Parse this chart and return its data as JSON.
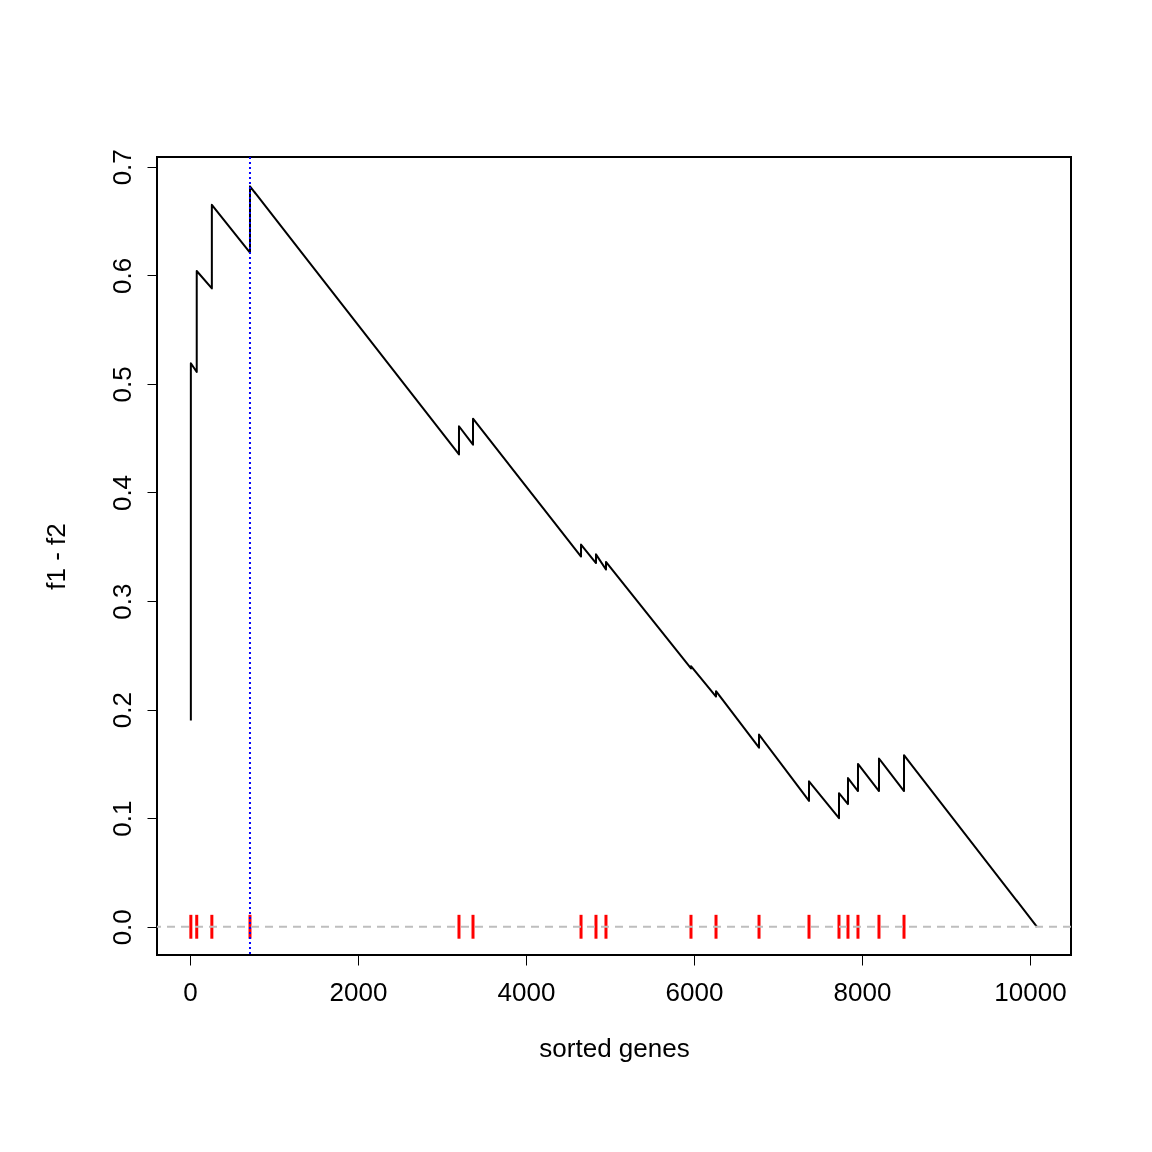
{
  "chart_data": {
    "type": "line",
    "xlabel": "sorted genes",
    "ylabel": "f1 - f2",
    "xlim": [
      -393,
      10488
    ],
    "xticks": [
      0,
      2000,
      4000,
      6000,
      8000,
      10000
    ],
    "ylim": [
      -0.026,
      0.709
    ],
    "yticks": [
      {
        "value": 0,
        "label": "0.0"
      },
      {
        "value": 0.1,
        "label": "0.1"
      },
      {
        "value": 0.2,
        "label": "0.2"
      },
      {
        "value": 0.3,
        "label": "0.3"
      },
      {
        "value": 0.4,
        "label": "0.4"
      },
      {
        "value": 0.5,
        "label": "0.5"
      },
      {
        "value": 0.6,
        "label": "0.6"
      },
      {
        "value": 0.7,
        "label": "0.7"
      }
    ],
    "grid": false,
    "marker": "none",
    "series": [
      {
        "color": "#000000",
        "line_style": "solid",
        "x": [
          10,
          10,
          80,
          80,
          260,
          260,
          714,
          714,
          3202,
          3202,
          3369,
          3369,
          4655,
          4655,
          4833,
          4833,
          4952,
          4952,
          5964,
          5964,
          6262,
          6262,
          6774,
          6774,
          7369,
          7369,
          7726,
          7726,
          7833,
          7833,
          7952,
          7952,
          8202,
          8202,
          8500,
          8500,
          10083
        ],
        "values": [
          0.19,
          0.519,
          0.511,
          0.604,
          0.588,
          0.665,
          0.621,
          0.682,
          0.435,
          0.461,
          0.444,
          0.468,
          0.341,
          0.352,
          0.335,
          0.343,
          0.329,
          0.336,
          0.238,
          0.24,
          0.212,
          0.217,
          0.165,
          0.177,
          0.116,
          0.134,
          0.1,
          0.123,
          0.113,
          0.137,
          0.125,
          0.15,
          0.125,
          0.155,
          0.125,
          0.158,
          0
        ]
      },
      {
        "type": "bar",
        "color": "#ff0000",
        "x": [
          10,
          80,
          260,
          714,
          3202,
          3369,
          4655,
          4833,
          4952,
          5964,
          6262,
          6774,
          7369,
          7726,
          7833,
          7952,
          8202,
          8500
        ],
        "values": [
          0.022,
          0.022,
          0.022,
          0.022,
          0.022,
          0.022,
          0.022,
          0.022,
          0.022,
          0.022,
          0.022,
          0.022,
          0.022,
          0.022,
          0.022,
          0.022,
          0.022,
          0.022
        ],
        "base": [
          -0.011,
          -0.011,
          -0.011,
          -0.011,
          -0.011,
          -0.011,
          -0.011,
          -0.011,
          -0.011,
          -0.011,
          -0.011,
          -0.011,
          -0.011,
          -0.011,
          -0.011,
          -0.011,
          -0.011,
          -0.011
        ]
      }
    ],
    "ref_lines": [
      {
        "axis": "y",
        "value": 0,
        "color": "#bebebe",
        "line_style": "dashed"
      },
      {
        "axis": "x",
        "value": 714,
        "color": "#0000ff",
        "line_style": "dotted"
      }
    ]
  }
}
